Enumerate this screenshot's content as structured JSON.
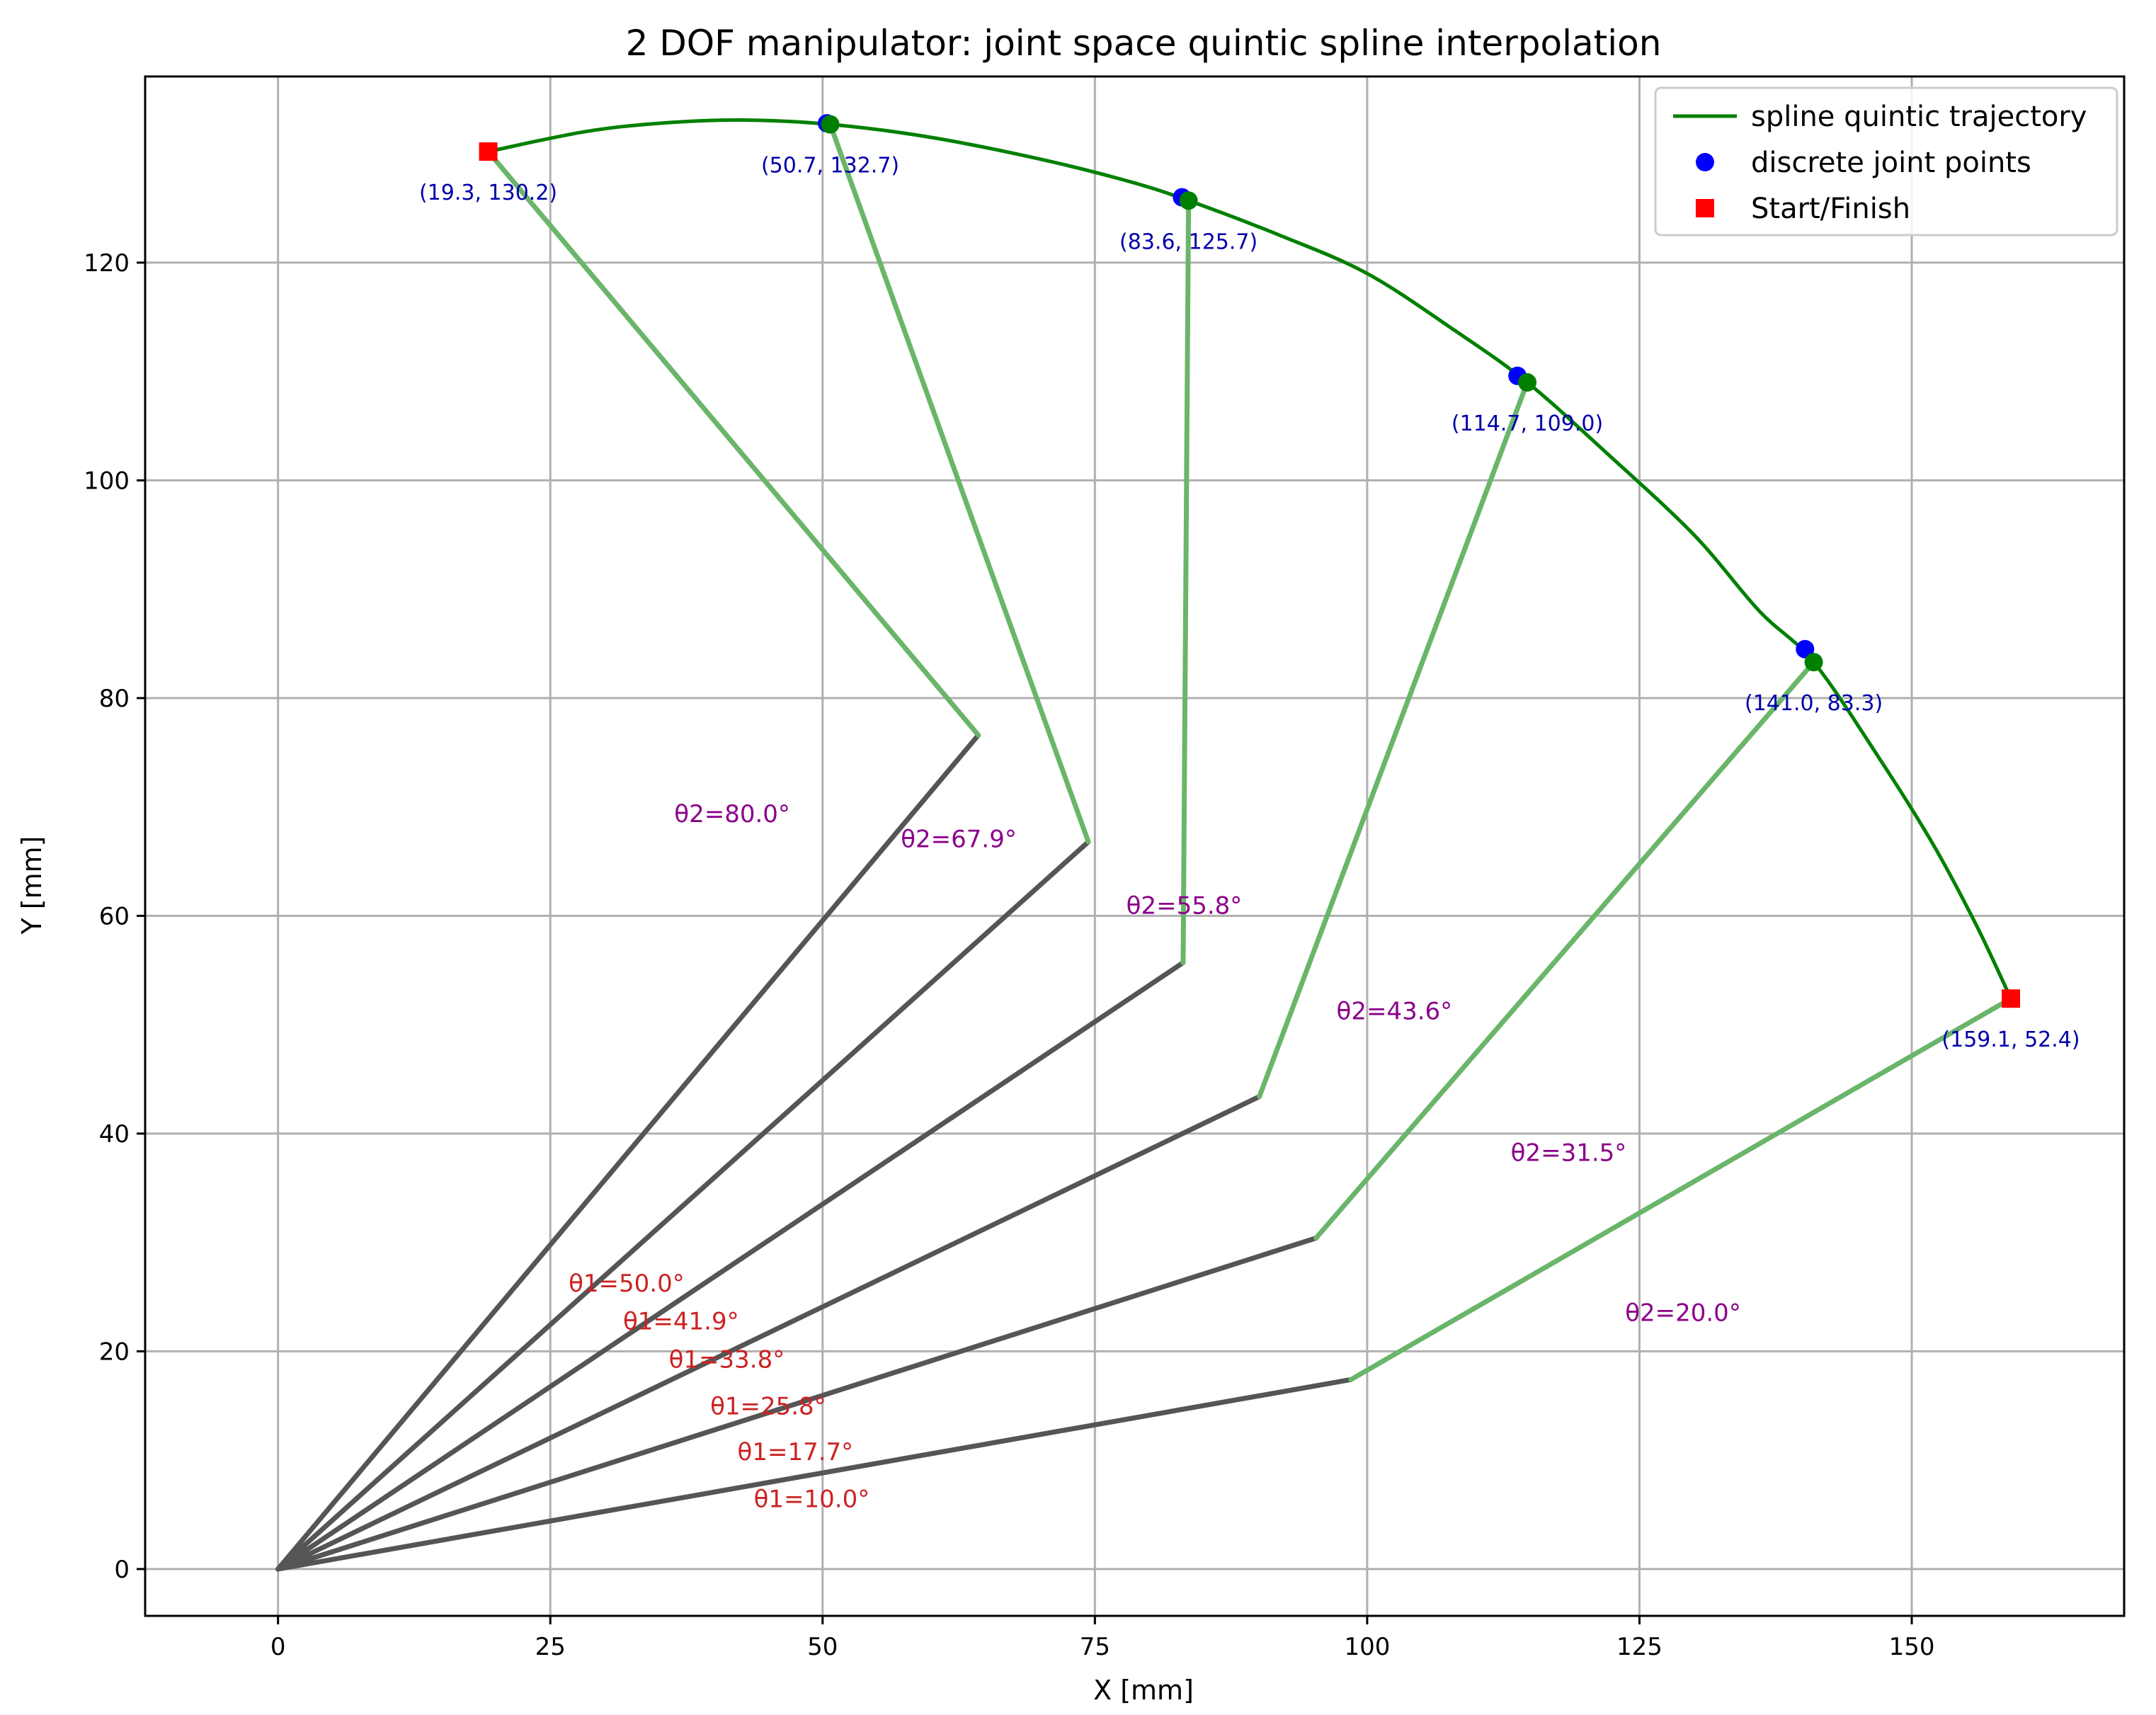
{
  "chart_data": {
    "type": "line",
    "title": "2 DOF manipulator: joint space quintic spline interpolation",
    "xlabel": "X [mm]",
    "ylabel": "Y [mm]",
    "xlim": [
      -12.2,
      169.5
    ],
    "ylim": [
      -4.3,
      137.1
    ],
    "xticks": [
      0,
      25,
      50,
      75,
      100,
      125,
      150
    ],
    "yticks": [
      0,
      20,
      40,
      60,
      80,
      100,
      120
    ],
    "grid": true,
    "legend_position": "top-right",
    "colors": {
      "trajectory": "#008000",
      "link1": "#555555",
      "link2": "#6ab56a",
      "discrete_points": "#0000ff",
      "start_finish": "#ff0000",
      "coord_label": "#0000aa",
      "theta2_label": "#8b008b",
      "theta1_label": "#cc2222"
    },
    "legend": [
      {
        "label": "spline quintic trajectory",
        "marker": "line",
        "color": "#008000"
      },
      {
        "label": "discrete joint points",
        "marker": "circle",
        "color": "#0000ff"
      },
      {
        "label": "Start/Finish",
        "marker": "square",
        "color": "#ff0000"
      }
    ],
    "trajectory": [
      {
        "x": 19.3,
        "y": 130.2
      },
      {
        "x": 28.0,
        "y": 132.0
      },
      {
        "x": 35.0,
        "y": 132.8
      },
      {
        "x": 42.5,
        "y": 133.1
      },
      {
        "x": 50.7,
        "y": 132.7
      },
      {
        "x": 60.0,
        "y": 131.5
      },
      {
        "x": 70.0,
        "y": 129.5
      },
      {
        "x": 78.0,
        "y": 127.5
      },
      {
        "x": 83.6,
        "y": 125.7
      },
      {
        "x": 92.0,
        "y": 122.5
      },
      {
        "x": 100.0,
        "y": 119.0
      },
      {
        "x": 108.0,
        "y": 113.8
      },
      {
        "x": 114.7,
        "y": 109.0
      },
      {
        "x": 122.0,
        "y": 102.5
      },
      {
        "x": 130.0,
        "y": 95.0
      },
      {
        "x": 136.0,
        "y": 88.0
      },
      {
        "x": 141.0,
        "y": 83.3
      },
      {
        "x": 147.0,
        "y": 74.5
      },
      {
        "x": 152.0,
        "y": 66.5
      },
      {
        "x": 156.0,
        "y": 59.0
      },
      {
        "x": 159.1,
        "y": 52.4
      }
    ],
    "discrete_points": [
      {
        "x": 50.4,
        "y": 132.8
      },
      {
        "x": 83.0,
        "y": 126.0
      },
      {
        "x": 113.8,
        "y": 109.6
      },
      {
        "x": 140.2,
        "y": 84.5
      }
    ],
    "spline_points": [
      {
        "x": 50.7,
        "y": 132.7
      },
      {
        "x": 83.6,
        "y": 125.7
      },
      {
        "x": 114.7,
        "y": 109.0
      },
      {
        "x": 141.0,
        "y": 83.3
      }
    ],
    "start_finish": [
      {
        "x": 19.3,
        "y": 130.2
      },
      {
        "x": 159.1,
        "y": 52.4
      }
    ],
    "point_labels": [
      {
        "text": "(19.3, 130.2)",
        "x": 19.3,
        "y": 130.2
      },
      {
        "text": "(50.7, 132.7)",
        "x": 50.7,
        "y": 132.7
      },
      {
        "text": "(83.6, 125.7)",
        "x": 83.6,
        "y": 125.7
      },
      {
        "text": "(114.7, 109.0)",
        "x": 114.7,
        "y": 109.0
      },
      {
        "text": "(141.0, 83.3)",
        "x": 141.0,
        "y": 83.3
      },
      {
        "text": "(159.1, 52.4)",
        "x": 159.1,
        "y": 52.4
      }
    ],
    "arm_configurations": [
      {
        "elbow": {
          "x": 64.3,
          "y": 76.6
        },
        "end": {
          "x": 19.3,
          "y": 130.2
        },
        "theta1_label": "θ1=50.0°",
        "theta1_pos": {
          "x": 32.0,
          "y": 25.5
        },
        "theta2_label": "θ2=80.0°",
        "theta2_pos": {
          "x": 41.7,
          "y": 68.6
        }
      },
      {
        "elbow": {
          "x": 74.4,
          "y": 66.8
        },
        "end": {
          "x": 50.7,
          "y": 132.7
        },
        "theta1_label": "θ1=41.9°",
        "theta1_pos": {
          "x": 37.0,
          "y": 22.0
        },
        "theta2_label": "θ2=67.9°",
        "theta2_pos": {
          "x": 62.5,
          "y": 66.3
        }
      },
      {
        "elbow": {
          "x": 83.1,
          "y": 55.7
        },
        "end": {
          "x": 83.6,
          "y": 125.7
        },
        "theta1_label": "θ1=33.8°",
        "theta1_pos": {
          "x": 41.2,
          "y": 18.5
        },
        "theta2_label": "θ2=55.8°",
        "theta2_pos": {
          "x": 83.2,
          "y": 60.2
        }
      },
      {
        "elbow": {
          "x": 90.1,
          "y": 43.4
        },
        "end": {
          "x": 114.7,
          "y": 109.0
        },
        "theta1_label": "θ1=25.8°",
        "theta1_pos": {
          "x": 45.0,
          "y": 14.2
        },
        "theta2_label": "θ2=43.6°",
        "theta2_pos": {
          "x": 102.5,
          "y": 50.5
        }
      },
      {
        "elbow": {
          "x": 95.3,
          "y": 30.4
        },
        "end": {
          "x": 141.0,
          "y": 83.3
        },
        "theta1_label": "θ1=17.7°",
        "theta1_pos": {
          "x": 47.5,
          "y": 10.0
        },
        "theta2_label": "θ2=31.5°",
        "theta2_pos": {
          "x": 118.5,
          "y": 37.5
        }
      },
      {
        "elbow": {
          "x": 98.5,
          "y": 17.4
        },
        "end": {
          "x": 159.1,
          "y": 52.4
        },
        "theta1_label": "θ1=10.0°",
        "theta1_pos": {
          "x": 49.0,
          "y": 5.7
        },
        "theta2_label": "θ2=20.0°",
        "theta2_pos": {
          "x": 129.0,
          "y": 22.8
        }
      }
    ]
  }
}
